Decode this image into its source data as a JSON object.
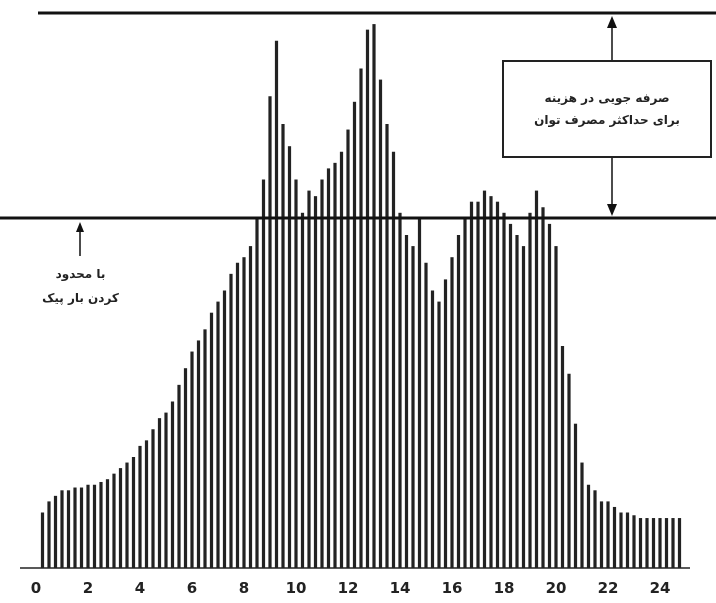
{
  "annotations": {
    "saving_line1": "صرفه جویی در هزینه",
    "saving_line2": "برای حداکثر مصرف توان",
    "peak_line1": "با محدود",
    "peak_line2": "کردن بار پیک"
  },
  "chart_data": {
    "type": "bar",
    "title": "",
    "xlabel": "",
    "ylabel": "",
    "xlim": [
      0,
      25
    ],
    "ylim": [
      0,
      100
    ],
    "xticks": [
      "0",
      "2",
      "4",
      "6",
      "8",
      "10",
      "12",
      "14",
      "16",
      "18",
      "20",
      "22",
      "24"
    ],
    "reference_lines": {
      "max_demand": 100,
      "limited_peak": 63
    },
    "bar_color": "#222222",
    "x": [
      0.25,
      0.5,
      0.75,
      1,
      1.25,
      1.5,
      1.75,
      2,
      2.25,
      2.5,
      2.75,
      3,
      3.25,
      3.5,
      3.75,
      4,
      4.25,
      4.5,
      4.75,
      5,
      5.25,
      5.5,
      5.75,
      6,
      6.25,
      6.5,
      6.75,
      7,
      7.25,
      7.5,
      7.75,
      8,
      8.25,
      8.5,
      8.75,
      9,
      9.25,
      9.5,
      9.75,
      10,
      10.25,
      10.5,
      10.75,
      11,
      11.25,
      11.5,
      11.75,
      12,
      12.25,
      12.5,
      12.75,
      13,
      13.25,
      13.5,
      13.75,
      14,
      14.25,
      14.5,
      14.75,
      15,
      15.25,
      15.5,
      15.75,
      16,
      16.25,
      16.5,
      16.75,
      17,
      17.25,
      17.5,
      17.75,
      18,
      18.25,
      18.5,
      18.75,
      19,
      19.25,
      19.5,
      19.75,
      20,
      20.25,
      20.5,
      20.75,
      21,
      21.25,
      21.5,
      21.75,
      22,
      22.25,
      22.5,
      22.75,
      23,
      23.25,
      23.5,
      23.75,
      24,
      24.25,
      24.5,
      24.75
    ],
    "values": [
      10,
      12,
      13,
      14,
      14,
      14.5,
      14.5,
      15,
      15,
      15.5,
      16,
      17,
      18,
      19,
      20,
      22,
      23,
      25,
      27,
      28,
      30,
      33,
      36,
      39,
      41,
      43,
      46,
      48,
      50,
      53,
      55,
      56,
      58,
      63,
      70,
      85,
      95,
      80,
      76,
      70,
      64,
      68,
      67,
      70,
      72,
      73,
      75,
      79,
      84,
      90,
      97,
      98,
      88,
      80,
      75,
      64,
      60,
      58,
      63,
      55,
      50,
      48,
      52,
      56,
      60,
      63,
      66,
      66,
      68,
      67,
      66,
      64,
      62,
      60,
      58,
      64,
      68,
      65,
      62,
      58,
      40,
      35,
      26,
      19,
      15,
      14,
      12,
      12,
      11,
      10,
      10,
      9.5,
      9,
      9,
      9,
      9,
      9,
      9,
      9
    ]
  }
}
